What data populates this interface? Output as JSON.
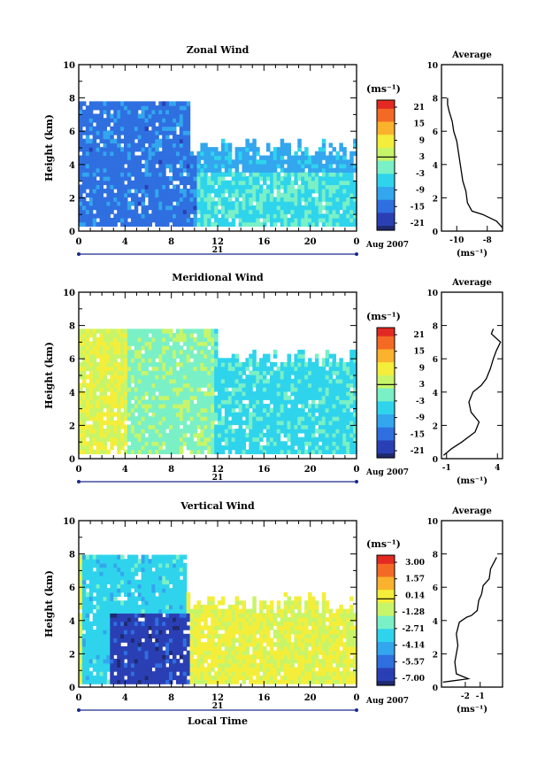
{
  "chart_data": [
    {
      "type": "heatmap",
      "title": "Zonal Wind",
      "ylabel": "Height (km)",
      "xlabel": "",
      "xlim": [
        0,
        24
      ],
      "ylim": [
        0,
        10
      ],
      "xticks": [
        "0",
        "4",
        "8",
        "12",
        "16",
        "20",
        "0"
      ],
      "yticks": [
        "0",
        "2",
        "4",
        "6",
        "8",
        "10"
      ],
      "date_label": "21",
      "date_suffix": "Aug 2007",
      "unit_label": "(ms⁻¹)",
      "colorbar": {
        "min": -24,
        "max": 24,
        "ticks": [
          "21",
          "15",
          "9",
          "3",
          "-3",
          "-9",
          "-15",
          "-21"
        ],
        "zero_line": 3
      },
      "field": {
        "top_km": 7.7,
        "bottom_km": 0.3,
        "end_hour": 24,
        "clear_top_after_hour": 9.5,
        "clear_top_km": 5.5,
        "base": -9,
        "core": {
          "from": 0,
          "to": 10,
          "value": -14
        },
        "low_layer": {
          "top_km": 3.5,
          "value": -3
        }
      },
      "profile": {
        "title": "Average",
        "xlabel": "(ms⁻¹)",
        "xlim": [
          -11,
          -7
        ],
        "xticks": [
          "-10",
          "-8"
        ],
        "ylim": [
          0,
          10
        ],
        "yticks": [
          "0",
          "2",
          "4",
          "6",
          "8",
          "10"
        ],
        "points": [
          [
            -7.0,
            0.2
          ],
          [
            -7.4,
            0.6
          ],
          [
            -8.3,
            1.0
          ],
          [
            -9.0,
            1.2
          ],
          [
            -9.3,
            1.7
          ],
          [
            -9.4,
            2.4
          ],
          [
            -9.6,
            3.0
          ],
          [
            -9.7,
            3.6
          ],
          [
            -9.8,
            4.2
          ],
          [
            -9.9,
            4.8
          ],
          [
            -10.0,
            5.4
          ],
          [
            -10.2,
            6.0
          ],
          [
            -10.3,
            6.6
          ],
          [
            -10.5,
            7.2
          ],
          [
            -10.6,
            7.6
          ],
          [
            -10.6,
            8.0
          ]
        ]
      }
    },
    {
      "type": "heatmap",
      "title": "Meridional Wind",
      "ylabel": "Height (km)",
      "xlabel": "",
      "xlim": [
        0,
        24
      ],
      "ylim": [
        0,
        10
      ],
      "xticks": [
        "0",
        "4",
        "8",
        "12",
        "16",
        "20",
        "0"
      ],
      "yticks": [
        "0",
        "2",
        "4",
        "6",
        "8",
        "10"
      ],
      "date_label": "21",
      "date_suffix": "Aug 2007",
      "unit_label": "(ms⁻¹)",
      "colorbar": {
        "min": -24,
        "max": 24,
        "ticks": [
          "21",
          "15",
          "9",
          "3",
          "-3",
          "-9",
          "-15",
          "-21"
        ],
        "zero_line": 3
      },
      "field": {
        "top_km": 7.7,
        "bottom_km": 0.3,
        "end_hour": 24,
        "clear_top_after_hour": 12,
        "clear_top_km": 6.5,
        "base": 1,
        "core": {
          "from": 0,
          "to": 4,
          "value": 7
        },
        "late": {
          "from": 11.5,
          "value": -4
        }
      },
      "profile": {
        "title": "Average",
        "xlabel": "(ms⁻¹)",
        "xlim": [
          -1.5,
          4.5
        ],
        "xticks": [
          "-1",
          "4"
        ],
        "ylim": [
          0,
          10
        ],
        "yticks": [
          "0",
          "2",
          "4",
          "6",
          "8",
          "10"
        ],
        "points": [
          [
            -1.3,
            0.2
          ],
          [
            -0.5,
            0.6
          ],
          [
            0.5,
            1.0
          ],
          [
            1.8,
            1.6
          ],
          [
            2.2,
            2.2
          ],
          [
            1.4,
            2.8
          ],
          [
            1.2,
            3.4
          ],
          [
            1.6,
            4.0
          ],
          [
            2.4,
            4.4
          ],
          [
            2.9,
            4.8
          ],
          [
            3.3,
            5.4
          ],
          [
            3.6,
            6.0
          ],
          [
            3.9,
            6.5
          ],
          [
            4.3,
            7.0
          ],
          [
            3.4,
            7.5
          ],
          [
            3.6,
            7.8
          ]
        ]
      }
    },
    {
      "type": "heatmap",
      "title": "Vertical Wind",
      "ylabel": "Height (km)",
      "xlabel": "Local Time",
      "xlim": [
        0,
        24
      ],
      "ylim": [
        0,
        10
      ],
      "xticks": [
        "0",
        "4",
        "8",
        "12",
        "16",
        "20",
        "0"
      ],
      "yticks": [
        "0",
        "2",
        "4",
        "6",
        "8",
        "10"
      ],
      "date_label": "21",
      "date_suffix": "Aug 2007",
      "unit_label": "(ms⁻¹)",
      "colorbar": {
        "min": -8.5,
        "max": 4.5,
        "ticks": [
          "3.00",
          "1.57",
          "0.14",
          "-1.28",
          "-2.71",
          "-4.14",
          "-5.57",
          "-7.00"
        ],
        "zero_line": 0.14
      },
      "field": {
        "top_km": 7.9,
        "bottom_km": 0.2,
        "end_hour": 24,
        "clear_top_after_hour": 9,
        "clear_top_km": 5.5,
        "base": 0.1,
        "core": {
          "from": 2.6,
          "to": 9.4,
          "value": -7.2,
          "top_km": 4.4
        },
        "upper": {
          "from": 0.3,
          "to": 9,
          "value": -3.3
        }
      },
      "profile": {
        "title": "Average",
        "xlabel": "(ms⁻¹)",
        "xlim": [
          -3.6,
          0.5
        ],
        "xticks": [
          "-2",
          "-1"
        ],
        "ylim": [
          0,
          10
        ],
        "yticks": [
          "0",
          "2",
          "4",
          "6",
          "8",
          "10"
        ],
        "points": [
          [
            -3.5,
            0.3
          ],
          [
            -1.8,
            0.5
          ],
          [
            -2.6,
            0.8
          ],
          [
            -2.7,
            1.5
          ],
          [
            -2.5,
            2.5
          ],
          [
            -2.6,
            3.2
          ],
          [
            -2.4,
            3.9
          ],
          [
            -1.9,
            4.2
          ],
          [
            -1.6,
            4.3
          ],
          [
            -1.2,
            4.6
          ],
          [
            -1.1,
            5.2
          ],
          [
            -0.9,
            5.6
          ],
          [
            -0.8,
            6.1
          ],
          [
            -0.4,
            6.5
          ],
          [
            -0.3,
            7.1
          ],
          [
            0.1,
            7.8
          ]
        ]
      }
    }
  ]
}
